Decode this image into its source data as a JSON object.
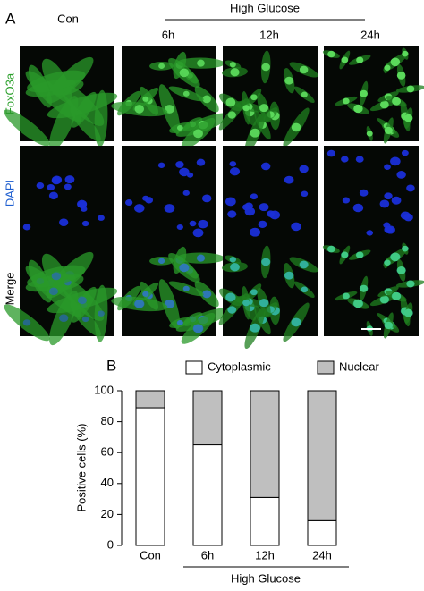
{
  "panel_a": {
    "label": "A",
    "group_label": "High Glucose",
    "columns": [
      "Con",
      "6h",
      "12h",
      "24h"
    ],
    "rows": [
      "FoxO3a",
      "DAPI",
      "Merge"
    ]
  },
  "chart_data": {
    "type": "stacked_bar",
    "panel_label": "B",
    "y_label": "Positive cells (%)",
    "categories": [
      "Con",
      "6h",
      "12h",
      "24h"
    ],
    "group_label": "High Glucose",
    "series": [
      {
        "name": "Cytoplasmic",
        "color": "#ffffff",
        "values": [
          89,
          65,
          31,
          16
        ]
      },
      {
        "name": "Nuclear",
        "color": "#bfbfbf",
        "values": [
          11,
          35,
          69,
          84
        ]
      }
    ],
    "ylim": [
      0,
      100
    ],
    "yticks": [
      0,
      20,
      40,
      60,
      80,
      100
    ]
  }
}
